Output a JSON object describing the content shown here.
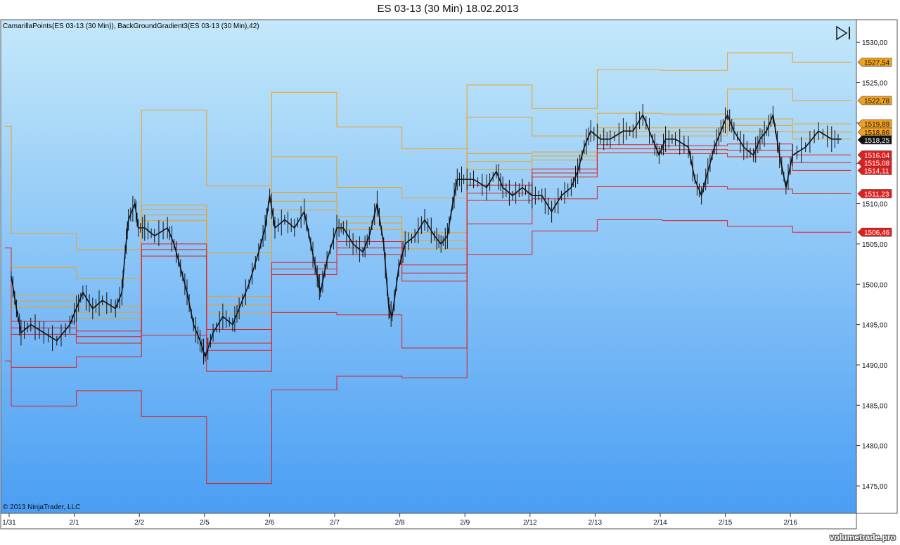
{
  "title": "ES 03-13 (30 Min)  18.02.2013",
  "indicator_label": "CamarillaPoints(ES 03-13 (30 Min)), BackGroundGradient3(ES 03-13 (30 Min),42)",
  "copyright": "© 2013 NinjaTrader, LLC",
  "watermark": "volumetrade.pro",
  "icons": {
    "nav_end": "go-to-end-icon"
  },
  "colors": {
    "bg_top": "#c4e8fa",
    "bg_bottom": "#4a9ef4",
    "price_line": "#111111",
    "resistance": "#f0a020",
    "support": "#e02020",
    "label_last": "#111111"
  },
  "chart_data": {
    "type": "line",
    "ylim": [
      1472,
      1532
    ],
    "y_ticks": [
      "1475,00",
      "1480,00",
      "1485,00",
      "1490,00",
      "1495,00",
      "1500,00",
      "1505,00",
      "1510,00",
      "1515,00",
      "1520,00",
      "1525,00",
      "1530,00"
    ],
    "x_labels": [
      "1/31",
      "2/1",
      "2/2",
      "2/5",
      "2/6",
      "2/7",
      "2/8",
      "2/9",
      "2/12",
      "2/13",
      "2/14",
      "2/15",
      "2/16"
    ],
    "price_series": {
      "name": "ES 03-13 (30 Min)",
      "points": [
        [
          0,
          1501
        ],
        [
          0.08,
          1497
        ],
        [
          0.15,
          1494
        ],
        [
          0.3,
          1495
        ],
        [
          0.5,
          1494
        ],
        [
          0.7,
          1493
        ],
        [
          0.9,
          1495
        ],
        [
          1.0,
          1497
        ],
        [
          1.1,
          1499
        ],
        [
          1.25,
          1497
        ],
        [
          1.4,
          1498
        ],
        [
          1.6,
          1497
        ],
        [
          1.7,
          1499
        ],
        [
          1.75,
          1504
        ],
        [
          1.8,
          1508
        ],
        [
          1.9,
          1510
        ],
        [
          1.95,
          1507
        ],
        [
          2.05,
          1507
        ],
        [
          2.2,
          1506
        ],
        [
          2.4,
          1507
        ],
        [
          2.5,
          1505
        ],
        [
          2.6,
          1502
        ],
        [
          2.7,
          1499
        ],
        [
          2.8,
          1495
        ],
        [
          2.9,
          1493
        ],
        [
          2.98,
          1491
        ],
        [
          3.1,
          1494
        ],
        [
          3.25,
          1496
        ],
        [
          3.4,
          1495
        ],
        [
          3.5,
          1497
        ],
        [
          3.65,
          1500
        ],
        [
          3.8,
          1504
        ],
        [
          3.9,
          1507
        ],
        [
          3.97,
          1511
        ],
        [
          4.05,
          1507
        ],
        [
          4.2,
          1508
        ],
        [
          4.35,
          1507
        ],
        [
          4.5,
          1509
        ],
        [
          4.6,
          1505
        ],
        [
          4.7,
          1501
        ],
        [
          4.75,
          1499
        ],
        [
          4.85,
          1503
        ],
        [
          5.0,
          1507
        ],
        [
          5.1,
          1507
        ],
        [
          5.25,
          1505
        ],
        [
          5.4,
          1504
        ],
        [
          5.5,
          1506
        ],
        [
          5.62,
          1510
        ],
        [
          5.72,
          1505
        ],
        [
          5.8,
          1497
        ],
        [
          5.85,
          1496
        ],
        [
          5.95,
          1502
        ],
        [
          6.05,
          1505
        ],
        [
          6.2,
          1506
        ],
        [
          6.35,
          1508
        ],
        [
          6.5,
          1506
        ],
        [
          6.6,
          1505
        ],
        [
          6.7,
          1506
        ],
        [
          6.78,
          1510
        ],
        [
          6.85,
          1513
        ],
        [
          6.95,
          1513
        ],
        [
          7.1,
          1513
        ],
        [
          7.3,
          1512
        ],
        [
          7.45,
          1514
        ],
        [
          7.55,
          1512
        ],
        [
          7.7,
          1511
        ],
        [
          7.85,
          1512
        ],
        [
          8.0,
          1511
        ],
        [
          8.15,
          1511
        ],
        [
          8.3,
          1509
        ],
        [
          8.45,
          1511
        ],
        [
          8.6,
          1512
        ],
        [
          8.7,
          1514
        ],
        [
          8.8,
          1517
        ],
        [
          8.9,
          1519
        ],
        [
          9.05,
          1518
        ],
        [
          9.2,
          1518
        ],
        [
          9.4,
          1519
        ],
        [
          9.55,
          1519
        ],
        [
          9.7,
          1521
        ],
        [
          9.85,
          1518
        ],
        [
          9.95,
          1516
        ],
        [
          10.05,
          1518
        ],
        [
          10.2,
          1518
        ],
        [
          10.4,
          1517
        ],
        [
          10.5,
          1513
        ],
        [
          10.6,
          1511
        ],
        [
          10.7,
          1514
        ],
        [
          10.8,
          1517
        ],
        [
          10.9,
          1519
        ],
        [
          11.0,
          1521
        ],
        [
          11.1,
          1519
        ],
        [
          11.25,
          1517
        ],
        [
          11.4,
          1516
        ],
        [
          11.5,
          1518
        ],
        [
          11.6,
          1519
        ],
        [
          11.7,
          1521
        ],
        [
          11.8,
          1516
        ],
        [
          11.9,
          1512
        ],
        [
          12.0,
          1516
        ],
        [
          12.2,
          1517
        ],
        [
          12.4,
          1519
        ],
        [
          12.6,
          1518
        ],
        [
          12.75,
          1518
        ]
      ]
    },
    "pivot_lines": [
      {
        "type": "resistance",
        "segments": [
          [
            -0.1,
            0,
            1519.6
          ],
          [
            0,
            1,
            1506.3
          ],
          [
            1,
            2,
            1504.3
          ],
          [
            2,
            3,
            1521.6
          ],
          [
            3,
            4,
            1512.2
          ],
          [
            4,
            5,
            1523.8
          ],
          [
            5,
            6,
            1519.5
          ],
          [
            6,
            7,
            1516.8
          ],
          [
            7,
            8,
            1524.7
          ],
          [
            8,
            9,
            1521.8
          ],
          [
            9,
            10,
            1526.6
          ],
          [
            10,
            11,
            1526.5
          ],
          [
            11,
            12,
            1528.7
          ],
          [
            12,
            12.9,
            1527.54
          ]
        ]
      },
      {
        "type": "resistance",
        "segments": [
          [
            0,
            1,
            1502.1
          ],
          [
            1,
            2,
            1500.7
          ],
          [
            2,
            3,
            1509.8
          ],
          [
            3,
            4,
            1503.9
          ],
          [
            4,
            5,
            1515.8
          ],
          [
            5,
            6,
            1512.0
          ],
          [
            6,
            7,
            1510.7
          ],
          [
            7,
            8,
            1520.7
          ],
          [
            8,
            9,
            1518.4
          ],
          [
            9,
            10,
            1521.2
          ],
          [
            10,
            11,
            1521.1
          ],
          [
            11,
            12,
            1524.2
          ],
          [
            12,
            12.9,
            1522.78
          ]
        ]
      },
      {
        "type": "resistance",
        "segments": [
          [
            0,
            1,
            1498.7
          ],
          [
            1,
            2,
            1497.3
          ],
          [
            2,
            3,
            1509.3
          ],
          [
            3,
            4,
            1498.5
          ],
          [
            4,
            5,
            1511.4
          ],
          [
            5,
            6,
            1508.4
          ],
          [
            6,
            7,
            1506.4
          ],
          [
            7,
            8,
            1516.2
          ],
          [
            8,
            9,
            1516.4
          ],
          [
            9,
            10,
            1519.4
          ],
          [
            10,
            11,
            1519.4
          ],
          [
            11,
            12,
            1520.5
          ],
          [
            12,
            12.9,
            1519.89
          ]
        ]
      },
      {
        "type": "resistance",
        "segments": [
          [
            0,
            1,
            1497.9
          ],
          [
            1,
            2,
            1496.5
          ],
          [
            2,
            3,
            1508.6
          ],
          [
            3,
            4,
            1497.4
          ],
          [
            4,
            5,
            1510.3
          ],
          [
            5,
            6,
            1507.6
          ],
          [
            6,
            7,
            1505.4
          ],
          [
            7,
            8,
            1515.2
          ],
          [
            8,
            9,
            1515.9
          ],
          [
            9,
            10,
            1518.9
          ],
          [
            10,
            11,
            1518.9
          ],
          [
            11,
            12,
            1519.7
          ],
          [
            12,
            12.9,
            1518.86
          ]
        ]
      },
      {
        "type": "resistance",
        "segments": [
          [
            0,
            1,
            1497.1
          ],
          [
            1,
            2,
            1495.8
          ],
          [
            2,
            3,
            1507.9
          ],
          [
            3,
            4,
            1496.4
          ],
          [
            4,
            5,
            1509.2
          ],
          [
            5,
            6,
            1506.8
          ],
          [
            6,
            7,
            1504.4
          ],
          [
            7,
            8,
            1514.2
          ],
          [
            8,
            9,
            1515.4
          ],
          [
            9,
            10,
            1518.4
          ],
          [
            10,
            11,
            1518.4
          ],
          [
            11,
            12,
            1518.9
          ],
          [
            12,
            12.9,
            1518.0
          ]
        ]
      },
      {
        "type": "support",
        "segments": [
          [
            0,
            1,
            1495.4
          ],
          [
            1,
            2,
            1494.2
          ],
          [
            2,
            3,
            1505.0
          ],
          [
            3,
            4,
            1494.4
          ],
          [
            4,
            5,
            1502.7
          ],
          [
            5,
            6,
            1505.3
          ],
          [
            6,
            7,
            1502.4
          ],
          [
            7,
            8,
            1512.3
          ],
          [
            8,
            9,
            1514.3
          ],
          [
            9,
            10,
            1517.3
          ],
          [
            10,
            11,
            1517.2
          ],
          [
            11,
            12,
            1517.4
          ],
          [
            12,
            12.9,
            1516.04
          ]
        ]
      },
      {
        "type": "support",
        "segments": [
          [
            0,
            1,
            1494.6
          ],
          [
            1,
            2,
            1493.5
          ],
          [
            2,
            3,
            1504.3
          ],
          [
            3,
            4,
            1492.7
          ],
          [
            4,
            5,
            1501.9
          ],
          [
            5,
            6,
            1504.5
          ],
          [
            6,
            7,
            1501.4
          ],
          [
            7,
            8,
            1511.3
          ],
          [
            8,
            9,
            1513.8
          ],
          [
            9,
            10,
            1516.8
          ],
          [
            10,
            11,
            1516.7
          ],
          [
            11,
            12,
            1516.6
          ],
          [
            12,
            12.9,
            1515.08
          ]
        ]
      },
      {
        "type": "support",
        "segments": [
          [
            0,
            1,
            1493.8
          ],
          [
            1,
            2,
            1492.7
          ],
          [
            2,
            3,
            1503.5
          ],
          [
            3,
            4,
            1491.8
          ],
          [
            4,
            5,
            1501.2
          ],
          [
            5,
            6,
            1503.7
          ],
          [
            6,
            7,
            1500.4
          ],
          [
            7,
            8,
            1510.4
          ],
          [
            8,
            9,
            1513.3
          ],
          [
            9,
            10,
            1516.3
          ],
          [
            10,
            11,
            1516.2
          ],
          [
            11,
            12,
            1515.8
          ],
          [
            12,
            12.9,
            1514.11
          ]
        ]
      },
      {
        "type": "support",
        "segments": [
          [
            -0.1,
            0,
            1504.5
          ],
          [
            0,
            1,
            1489.7
          ],
          [
            1,
            2,
            1491.0
          ],
          [
            2,
            3,
            1493.7
          ],
          [
            3,
            4,
            1489.2
          ],
          [
            4,
            5,
            1496.5
          ],
          [
            5,
            6,
            1496.2
          ],
          [
            6,
            7,
            1492.1
          ],
          [
            7,
            8,
            1507.5
          ],
          [
            8,
            9,
            1510.6
          ],
          [
            9,
            10,
            1512.1
          ],
          [
            10,
            11,
            1512.1
          ],
          [
            11,
            12,
            1511.8
          ],
          [
            12,
            12.9,
            1511.23
          ]
        ]
      },
      {
        "type": "support",
        "segments": [
          [
            -0.1,
            0,
            1490.5
          ],
          [
            0,
            1,
            1484.9
          ],
          [
            1,
            2,
            1486.8
          ],
          [
            2,
            3,
            1483.6
          ],
          [
            3,
            4,
            1475.3
          ],
          [
            4,
            5,
            1486.9
          ],
          [
            5,
            6,
            1488.6
          ],
          [
            6,
            7,
            1488.4
          ],
          [
            7,
            8,
            1503.7
          ],
          [
            8,
            9,
            1506.6
          ],
          [
            9,
            10,
            1508.0
          ],
          [
            10,
            11,
            1507.9
          ],
          [
            11,
            12,
            1507.2
          ],
          [
            12,
            12.9,
            1506.46
          ]
        ]
      }
    ],
    "price_labels": [
      {
        "text": "1527,54",
        "value": 1527.54,
        "kind": "resistance"
      },
      {
        "text": "1522,78",
        "value": 1522.78,
        "kind": "resistance"
      },
      {
        "text": "1519,89",
        "value": 1519.89,
        "kind": "resistance"
      },
      {
        "text": "1518,86",
        "value": 1518.86,
        "kind": "resistance"
      },
      {
        "text": "1518,25",
        "value": 1518.25,
        "kind": "last"
      },
      {
        "text": "1516,04",
        "value": 1516.04,
        "kind": "support"
      },
      {
        "text": "1515,08",
        "value": 1515.08,
        "kind": "support"
      },
      {
        "text": "1514,11",
        "value": 1514.11,
        "kind": "support"
      },
      {
        "text": "1511,23",
        "value": 1511.23,
        "kind": "support"
      },
      {
        "text": "1506,46",
        "value": 1506.46,
        "kind": "support"
      }
    ]
  }
}
